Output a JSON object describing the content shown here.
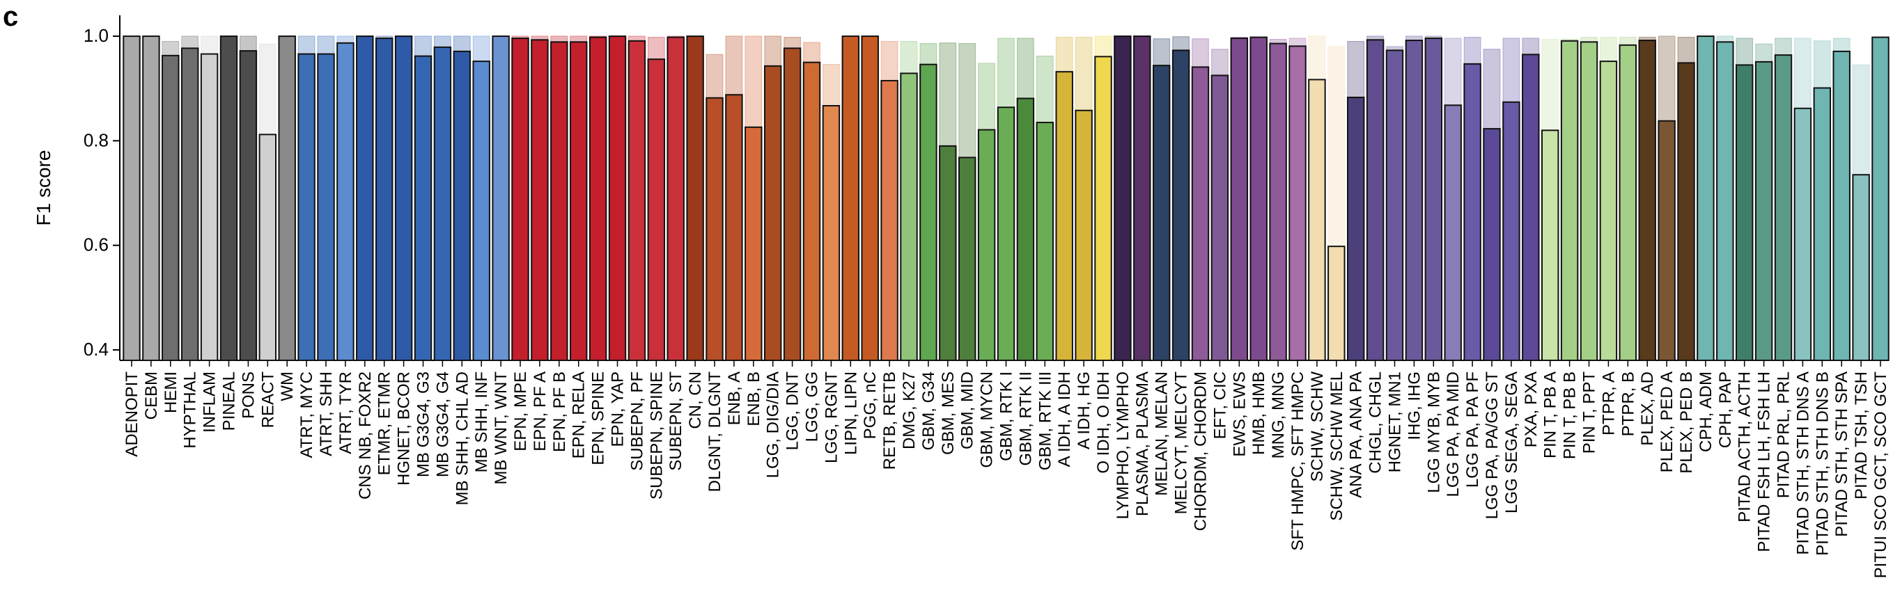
{
  "panel_label": "c",
  "chart_data": {
    "type": "bar",
    "ylabel": "F1 score",
    "xlabel": "",
    "ylim": [
      0.38,
      1.04
    ],
    "yticks": [
      0.4,
      0.6,
      0.8,
      1.0
    ],
    "ytick_labels": [
      "0.4",
      "0.6",
      "0.8",
      "1.0"
    ],
    "grid": false,
    "series_note_labels": [],
    "categories": [
      "ADENOPIT",
      "CEBM",
      "HEMI",
      "HYPTHAL",
      "INFLAM",
      "PINEAL",
      "PONS",
      "REACT",
      "WM",
      "ATRT, MYC",
      "ATRT, SHH",
      "ATRT, TYR",
      "CNS NB, FOXR2",
      "ETMR, ETMR",
      "HGNET, BCOR",
      "MB G3G4, G3",
      "MB G3G4, G4",
      "MB SHH, CHL AD",
      "MB SHH, INF",
      "MB WNT, WNT",
      "EPN, MPE",
      "EPN, PF A",
      "EPN, PF B",
      "EPN, RELA",
      "EPN, SPINE",
      "EPN, YAP",
      "SUBEPN, PF",
      "SUBEPN, SPINE",
      "SUBEPN, ST",
      "CN, CN",
      "DLGNT, DLGNT",
      "ENB, A",
      "ENB, B",
      "LGG, DIG/DIA",
      "LGG, DNT",
      "LGG, GG",
      "LGG, RGNT",
      "LIPN, LIPN",
      "PGG, nC",
      "RETB, RETB",
      "DMG, K27",
      "GBM, G34",
      "GBM, MES",
      "GBM, MID",
      "GBM, MYCN",
      "GBM, RTK I",
      "GBM, RTK II",
      "GBM, RTK III",
      "A IDH, A IDH",
      "A IDH, HG",
      "O IDH, O IDH",
      "LYMPHO, LYMPHO",
      "PLASMA, PLASMA",
      "MELAN, MELAN",
      "MELCYT, MELCYT",
      "CHORDM, CHORDM",
      "EFT, CIC",
      "EWS, EWS",
      "HMB, HMB",
      "MNG, MNG",
      "SFT HMPC, SFT HMPC",
      "SCHW, SCHW",
      "SCHW, SCHW MEL",
      "ANA PA, ANA PA",
      "CHGL, CHGL",
      "HGNET, MN1",
      "IHG, IHG",
      "LGG MYB, MYB",
      "LGG PA, PA MID",
      "LGG PA, PA PF",
      "LGG PA, PA/GG ST",
      "LGG SEGA, SEGA",
      "PXA, PXA",
      "PIN T, PB A",
      "PIN T, PB B",
      "PIN T, PPT",
      "PTPR, A",
      "PTPR, B",
      "PLEX, AD",
      "PLEX, PED A",
      "PLEX, PED B",
      "CPH, ADM",
      "CPH, PAP",
      "PITAD ACTH, ACTH",
      "PITAD FSH LH, FSH LH",
      "PITAD PRL, PRL",
      "PITAD STH, STH DNS A",
      "PITAD STH, STH DNS B",
      "PITAD STH, STH SPA",
      "PITAD TSH, TSH",
      "PITUI SCO GCT, SCO GCT"
    ],
    "colors": [
      "#a9a9a9",
      "#a9a9a9",
      "#6e6e6e",
      "#6e6e6e",
      "#d0d0d0",
      "#4d4d4d",
      "#4d4d4d",
      "#d0d0d0",
      "#8a8a8a",
      "#3d6fb6",
      "#3d6fb6",
      "#5b8cd0",
      "#2e5aa8",
      "#2e5aa8",
      "#2e5aa8",
      "#3566b4",
      "#3566b4",
      "#2e5aa8",
      "#5b8cd0",
      "#6b93d2",
      "#c41f2c",
      "#c41f2c",
      "#c41f2c",
      "#c41f2c",
      "#c41f2c",
      "#c41f2c",
      "#c9303a",
      "#c9303a",
      "#c9303a",
      "#9b3a1a",
      "#b84f28",
      "#b84f28",
      "#d66a3a",
      "#a84c22",
      "#a84c22",
      "#d06a34",
      "#e0884f",
      "#c65a25",
      "#c65a25",
      "#de7a4d",
      "#8fc47a",
      "#5fa650",
      "#4f7f3c",
      "#4f7f3c",
      "#6aad55",
      "#6aad55",
      "#4a8a3a",
      "#6aad55",
      "#d6b43a",
      "#d6b43a",
      "#f0d84e",
      "#3a2450",
      "#5a3266",
      "#2c4366",
      "#2c4366",
      "#8e5a98",
      "#7f5a94",
      "#7e4a8e",
      "#7e4a8e",
      "#8e5a98",
      "#a86ea8",
      "#f2ddb0",
      "#f2ddb0",
      "#4d3f7a",
      "#5f4d90",
      "#6a5a9c",
      "#6a5a9c",
      "#6a5a9c",
      "#8a7cb6",
      "#6a5aa8",
      "#5c4a98",
      "#6a5aa8",
      "#5c4a98",
      "#c8e4a8",
      "#a4cf86",
      "#a4cf86",
      "#b8dc98",
      "#a4cf86",
      "#5a3a1c",
      "#7a5634",
      "#5a3a1c",
      "#6fb5b2",
      "#6fb5b2",
      "#3f7f6a",
      "#5a9a86",
      "#5a9a86",
      "#8ac2c0",
      "#6fb5b2",
      "#6fb5b2",
      "#8ac2c0",
      "#6fb5b2"
    ],
    "values": [
      1.0,
      1.0,
      0.963,
      0.977,
      0.966,
      1.0,
      0.972,
      0.812,
      1.0,
      0.966,
      0.966,
      0.987,
      1.0,
      0.996,
      1.0,
      0.962,
      0.979,
      0.971,
      0.952,
      1.0,
      0.996,
      0.993,
      0.989,
      0.989,
      0.998,
      1.0,
      0.991,
      0.956,
      0.998,
      1.0,
      0.882,
      0.888,
      0.826,
      0.943,
      0.977,
      0.95,
      0.867,
      1.0,
      1.0,
      0.915,
      0.929,
      0.946,
      0.79,
      0.768,
      0.821,
      0.864,
      0.881,
      0.835,
      0.932,
      0.858,
      0.961,
      1.0,
      1.0,
      0.944,
      0.973,
      0.941,
      0.925,
      0.996,
      0.998,
      0.986,
      0.981,
      0.917,
      0.598,
      0.883,
      0.993,
      0.973,
      0.992,
      0.996,
      0.868,
      0.947,
      0.823,
      0.874,
      0.965,
      0.82,
      0.991,
      0.989,
      0.952,
      0.983,
      0.992,
      0.838,
      0.949,
      1.0,
      0.989,
      0.945,
      0.951,
      0.964,
      0.862,
      0.901,
      0.971,
      0.735,
      0.998
    ],
    "background_values": [
      1.0,
      1.0,
      0.99,
      1.0,
      1.0,
      1.0,
      1.0,
      0.985,
      1.0,
      1.0,
      1.0,
      1.0,
      1.0,
      1.0,
      1.0,
      1.0,
      1.0,
      1.0,
      1.0,
      1.0,
      1.0,
      1.0,
      1.0,
      1.0,
      1.0,
      1.0,
      1.0,
      0.998,
      1.0,
      1.0,
      0.965,
      1.0,
      1.0,
      1.0,
      0.998,
      0.988,
      0.946,
      1.0,
      1.0,
      0.99,
      0.99,
      0.986,
      0.987,
      0.986,
      0.948,
      0.996,
      0.996,
      0.962,
      0.998,
      0.998,
      1.0,
      1.0,
      1.0,
      0.995,
      0.999,
      0.995,
      0.975,
      0.998,
      0.998,
      0.994,
      0.996,
      1.0,
      0.98,
      0.99,
      1.0,
      0.98,
      1.0,
      1.0,
      0.996,
      0.998,
      0.975,
      0.996,
      0.996,
      0.994,
      0.994,
      0.998,
      0.998,
      0.998,
      0.998,
      1.0,
      0.998,
      1.0,
      1.0,
      0.996,
      0.985,
      0.996,
      0.996,
      0.991,
      0.996,
      0.945,
      0.998
    ]
  }
}
